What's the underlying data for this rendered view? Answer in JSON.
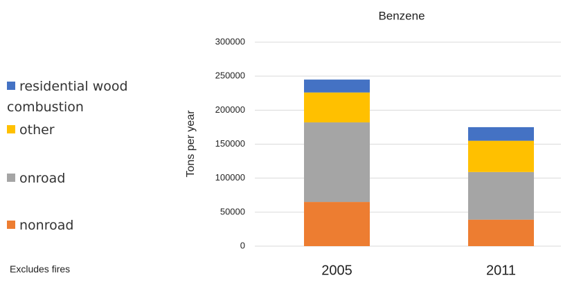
{
  "chart_data": {
    "type": "stacked_bar",
    "title": "Benzene",
    "y_label": "Tons per year",
    "annotation": "Excludes fires",
    "categories": [
      "2005",
      "2011"
    ],
    "series": [
      {
        "name": "nonroad",
        "color": "#ed7d31",
        "values": [
          65000,
          39000
        ]
      },
      {
        "name": "onroad",
        "color": "#a5a5a5",
        "values": [
          117000,
          70000
        ]
      },
      {
        "name": "other",
        "color": "#ffc000",
        "values": [
          44000,
          46000
        ]
      },
      {
        "name": "residential wood combustion",
        "color": "#4472c4",
        "values": [
          19000,
          20000
        ]
      }
    ],
    "ylim": [
      0,
      300000
    ],
    "yticks": [
      0,
      50000,
      100000,
      150000,
      200000,
      250000,
      300000
    ],
    "grid": true
  }
}
